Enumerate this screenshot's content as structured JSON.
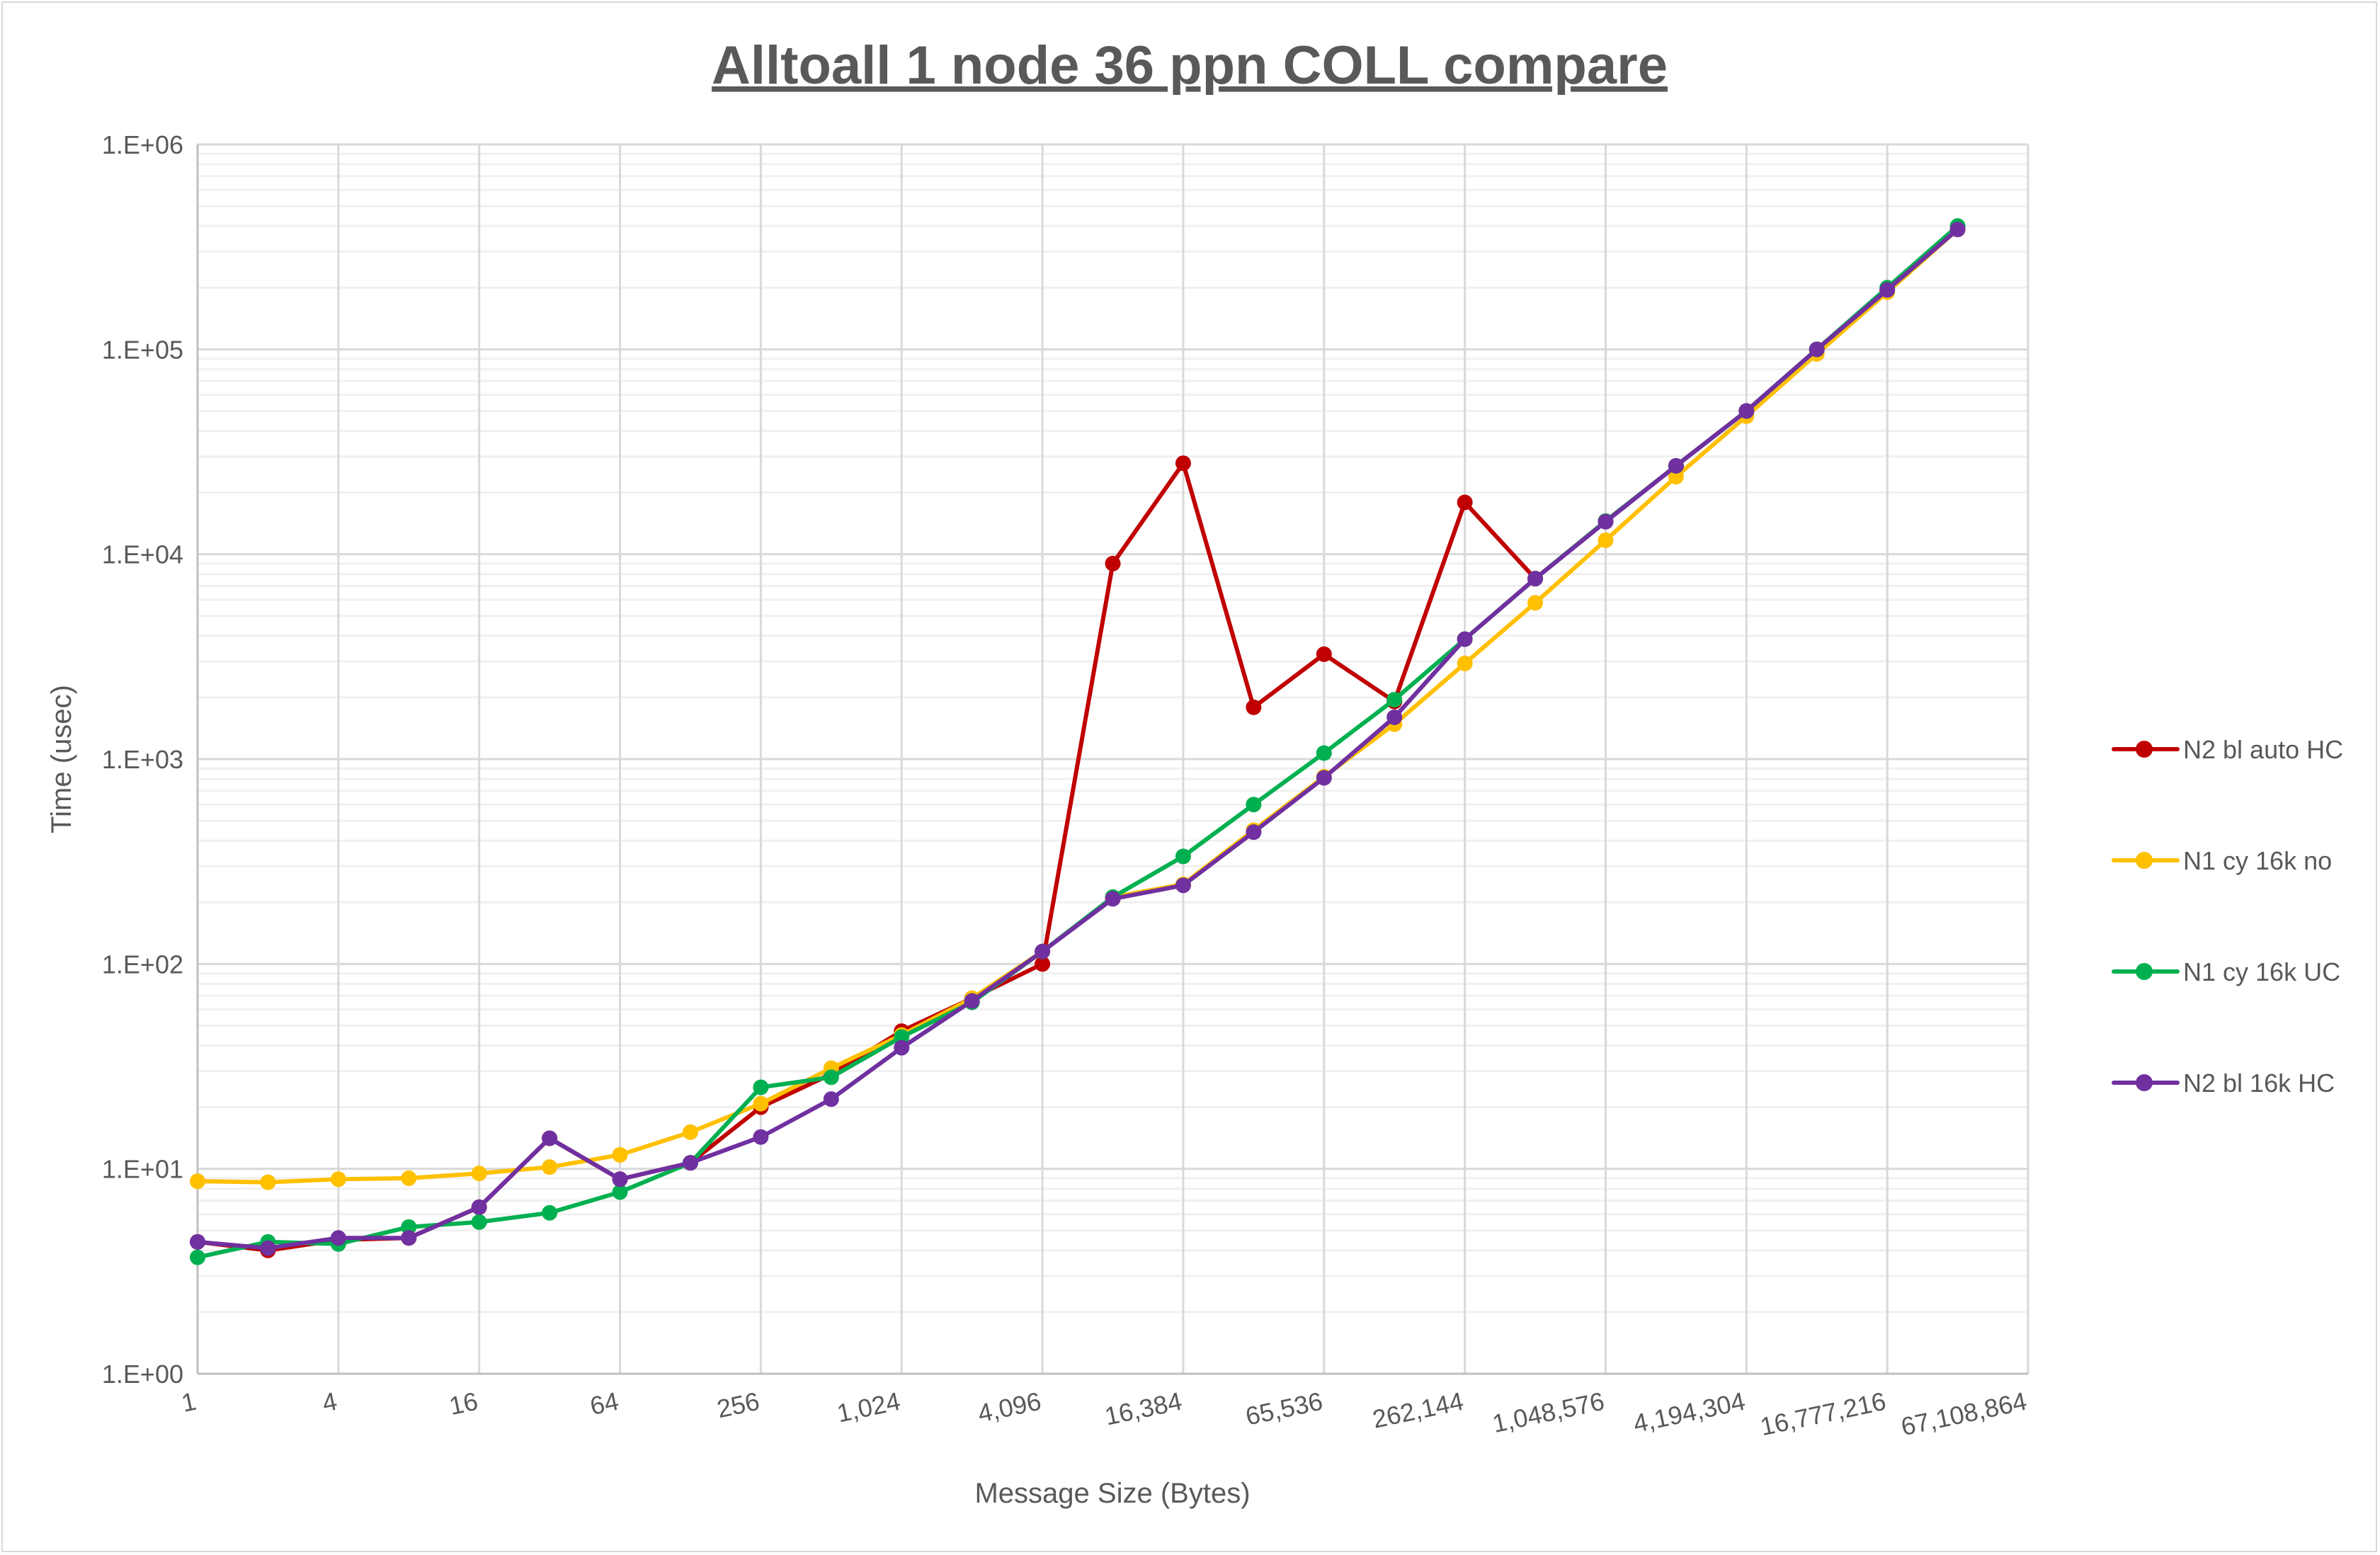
{
  "chart_data": {
    "type": "line",
    "title": "Alltoall 1 node 36 ppn COLL compare",
    "xlabel": "Message Size (Bytes)",
    "ylabel": "Time (usec)",
    "y_scale": "log",
    "ylim": [
      1,
      1000000
    ],
    "y_tick_labels": [
      "1.E+00",
      "1.E+01",
      "1.E+02",
      "1.E+03",
      "1.E+04",
      "1.E+05",
      "1.E+06"
    ],
    "x": [
      1,
      2,
      4,
      8,
      16,
      32,
      64,
      128,
      256,
      512,
      1024,
      2048,
      4096,
      8192,
      16384,
      32768,
      65536,
      131072,
      262144,
      524288,
      1048576,
      2097152,
      4194304,
      8388608,
      16777216,
      33554432
    ],
    "x_tick_labels": [
      "1",
      "4",
      "16",
      "64",
      "256",
      "1,024",
      "4,096",
      "16,384",
      "65,536",
      "262,144",
      "1,048,576",
      "4,194,304",
      "16,777,216",
      "67,108,864"
    ],
    "grid": true,
    "legend_position": "right",
    "series": [
      {
        "name": "N2 bl auto HC",
        "color": "#c00000",
        "values": [
          4.4,
          4.0,
          4.5,
          4.6,
          6.5,
          14.1,
          8.9,
          10.7,
          20,
          29,
          47,
          68,
          100,
          9000,
          27800,
          1790,
          3250,
          1910,
          17900,
          7600,
          14500,
          27000,
          50000,
          100000,
          195000,
          385000
        ]
      },
      {
        "name": "N1 cy 16k no",
        "color": "#ffc000",
        "values": [
          8.7,
          8.6,
          8.9,
          9.0,
          9.5,
          10.2,
          11.7,
          15.1,
          20.8,
          31,
          45,
          68,
          115,
          212,
          245,
          450,
          820,
          1480,
          2930,
          5790,
          11700,
          23900,
          47200,
          95000,
          190000,
          385000
        ]
      },
      {
        "name": "N1 cy 16k UC",
        "color": "#00b050",
        "values": [
          3.7,
          4.4,
          4.3,
          5.2,
          5.5,
          6.1,
          7.7,
          10.7,
          25,
          28,
          44,
          65,
          115,
          212,
          335,
          600,
          1070,
          1950,
          3850,
          7600,
          14500,
          27000,
          50000,
          100000,
          200000,
          400000
        ]
      },
      {
        "name": "N2 bl 16k HC",
        "color": "#7030a0",
        "values": [
          4.4,
          4.1,
          4.6,
          4.6,
          6.5,
          14.1,
          8.9,
          10.7,
          14.3,
          21.9,
          39,
          66,
          115,
          208,
          242,
          440,
          810,
          1600,
          3850,
          7600,
          14400,
          27000,
          50000,
          100000,
          195000,
          385000
        ]
      }
    ]
  }
}
